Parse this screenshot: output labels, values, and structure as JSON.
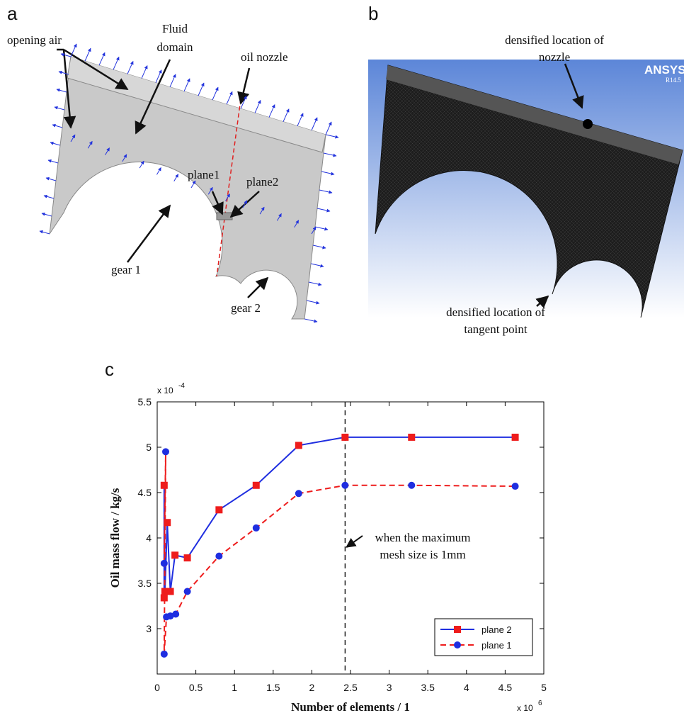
{
  "panel_a": {
    "label": "a",
    "opening_air": "opening air",
    "fluid_domain": [
      "Fluid",
      "domain"
    ],
    "oil_nozzle": "oil nozzle",
    "plane1": "plane1",
    "plane2": "plane2",
    "gear1": "gear 1",
    "gear2": "gear 2"
  },
  "panel_b": {
    "label": "b",
    "brand": "ANSYS",
    "version": "R14.5",
    "nozzle_note": [
      "densified location of",
      "nozzle"
    ],
    "tangent_note": [
      "densified location of",
      "tangent point"
    ]
  },
  "panel_c_label": "c",
  "chart_data": {
    "type": "line",
    "xlabel": "Number of elements / 1",
    "ylabel": "Oil mass flow / kg/s",
    "x_scale_base": "x 10",
    "x_scale_exp": "6",
    "y_scale_base": "x 10",
    "y_scale_exp": "-4",
    "xlim": [
      0,
      5
    ],
    "xticks": [
      0,
      0.5,
      1,
      1.5,
      2,
      2.5,
      3,
      3.5,
      4,
      4.5,
      5
    ],
    "ylim": [
      2.5,
      5.5
    ],
    "yticks": [
      3,
      3.5,
      4,
      4.5,
      5,
      5.5
    ],
    "grid": false,
    "legend": "lower right",
    "vline": 2.43,
    "annotation": [
      "when the maximum",
      "mesh size is 1mm"
    ],
    "series": [
      {
        "name": "plane 2",
        "color": "#1f2ee0",
        "marker_color": "#ee1c1c",
        "line_style": "solid",
        "marker": "square",
        "x": [
          0.09,
          0.09,
          0.1,
          0.13,
          0.17,
          0.23,
          0.39,
          0.8,
          1.28,
          1.83,
          2.43,
          3.29,
          4.63
        ],
        "values": [
          3.34,
          4.58,
          3.41,
          4.17,
          3.41,
          3.81,
          3.78,
          4.31,
          4.58,
          5.02,
          5.11,
          5.11,
          5.11
        ]
      },
      {
        "name": "plane 1",
        "color": "#ee1c1c",
        "marker_color": "#1f2ee0",
        "line_style": "dashed",
        "marker": "circle",
        "x": [
          0.09,
          0.11,
          0.09,
          0.12,
          0.17,
          0.24,
          0.39,
          0.8,
          1.28,
          1.83,
          2.43,
          3.29,
          4.63
        ],
        "values": [
          3.72,
          4.95,
          2.72,
          3.13,
          3.14,
          3.16,
          3.41,
          3.8,
          4.11,
          4.49,
          4.58,
          4.58,
          4.57
        ]
      }
    ]
  }
}
